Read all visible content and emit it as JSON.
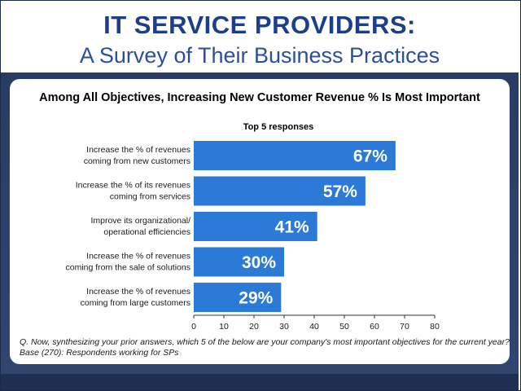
{
  "header": {
    "title": "IT SERVICE PROVIDERS:",
    "subtitle": "A Survey of Their Business Practices"
  },
  "colors": {
    "title": "#1c3f8c",
    "band": "#283c63",
    "bar": "#2b7ad8"
  },
  "chart_data": {
    "type": "bar",
    "orientation": "horizontal",
    "title": "Among All Objectives, Increasing New Customer Revenue % Is Most Important",
    "subtitle": "Top 5 responses",
    "categories": [
      [
        "Increase the % of revenues",
        "coming from new customers"
      ],
      [
        "Increase the % of its revenues",
        "coming from services"
      ],
      [
        "Improve its organizational/",
        "operational efficiencies"
      ],
      [
        "Increase the % of revenues",
        "coming from the sale of solutions"
      ],
      [
        "Increase the % of revenues",
        "coming from large customers"
      ]
    ],
    "values": [
      67,
      57,
      41,
      30,
      29
    ],
    "data_labels": [
      "67%",
      "57%",
      "41%",
      "30%",
      "29%"
    ],
    "xlim": [
      0,
      80
    ],
    "xticks": [
      0,
      10,
      20,
      30,
      40,
      50,
      60,
      70,
      80
    ],
    "grid": false,
    "legend": "none"
  },
  "footnote": {
    "question": "Q. Now, synthesizing your prior answers, which 5 of the below are your company's most important objectives for the current year?",
    "base": "Base (270): Respondents working for SPs"
  }
}
